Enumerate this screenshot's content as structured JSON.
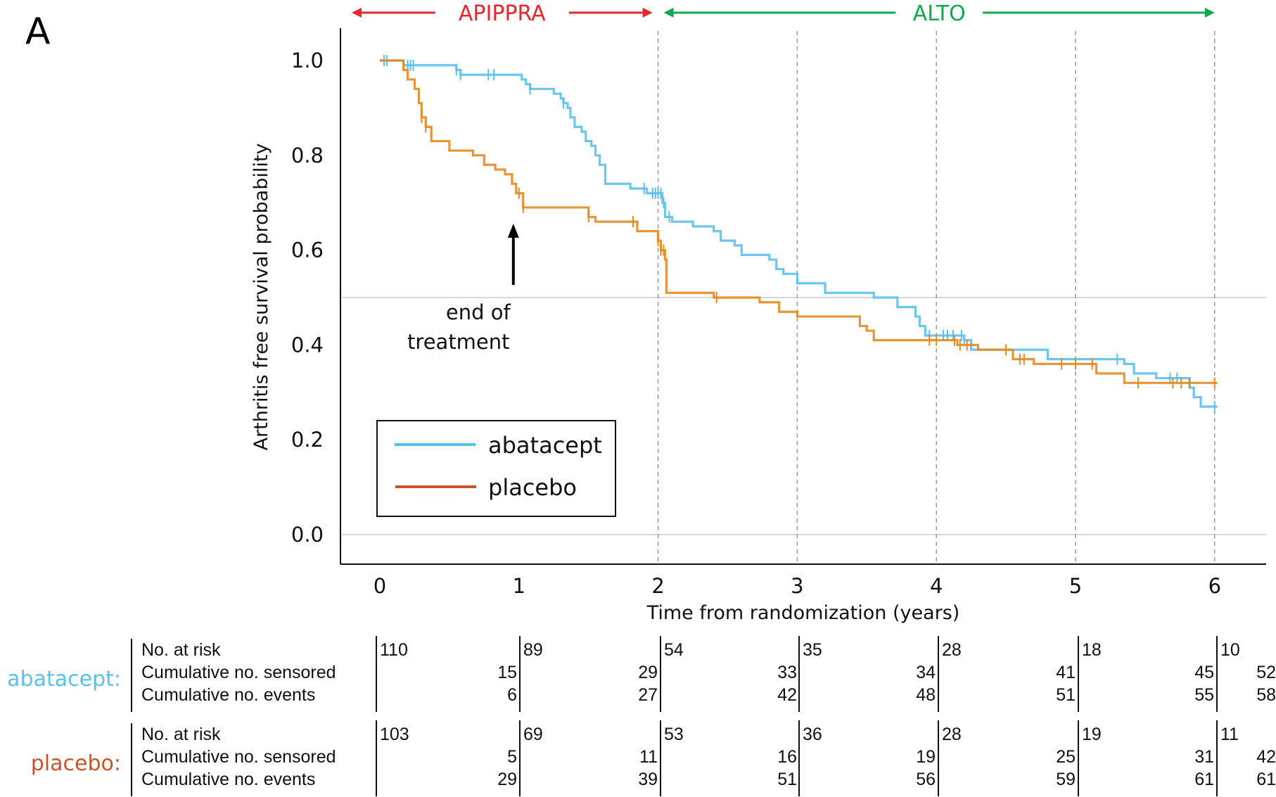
{
  "panel_label": "A",
  "colors": {
    "abatacept": "#5BC0EE",
    "placebo": "#E48A1F",
    "placebo_legend": "#C9542A",
    "apippra": "#E8262D",
    "alto": "#10A84A",
    "grid": "#cccccc",
    "vline": "#999999"
  },
  "phases": [
    {
      "label": "APIPPRA",
      "from": 0,
      "to": 2,
      "color_key": "apippra"
    },
    {
      "label": "ALTO",
      "from": 2,
      "to": 6,
      "color_key": "alto"
    }
  ],
  "annotation": {
    "line1": "end of",
    "line2": "treatment",
    "x": 1
  },
  "chart_data": {
    "type": "line",
    "subtype": "kaplan-meier step",
    "title": "",
    "xlabel": "Time from randomization (years)",
    "ylabel": "Arthritis free survival probability",
    "xlim": [
      -0.3,
      6.3
    ],
    "ylim": [
      -0.06,
      1.06
    ],
    "xticks": [
      0,
      1,
      2,
      3,
      4,
      5,
      6
    ],
    "xtick_labels": [
      "0",
      "1",
      "2",
      "3",
      "4",
      "5",
      "6"
    ],
    "yticks": [
      0.0,
      0.2,
      0.4,
      0.6,
      0.8,
      1.0
    ],
    "ytick_labels": [
      "0.0",
      "0.2",
      "0.4",
      "0.6",
      "0.8",
      "1.0"
    ],
    "hlines": [
      0.0,
      0.5
    ],
    "vlines_dashed": [
      2,
      3,
      4,
      5,
      6
    ],
    "legend": {
      "position": "bottom-left",
      "entries": [
        "abatacept",
        "placebo"
      ]
    },
    "series": [
      {
        "name": "abatacept",
        "steps": [
          [
            0.0,
            1.0
          ],
          [
            0.17,
            0.99
          ],
          [
            0.55,
            0.98
          ],
          [
            0.58,
            0.97
          ],
          [
            1.0,
            0.97
          ],
          [
            1.02,
            0.96
          ],
          [
            1.05,
            0.95
          ],
          [
            1.08,
            0.94
          ],
          [
            1.2,
            0.94
          ],
          [
            1.25,
            0.93
          ],
          [
            1.3,
            0.92
          ],
          [
            1.32,
            0.91
          ],
          [
            1.35,
            0.9
          ],
          [
            1.37,
            0.88
          ],
          [
            1.4,
            0.86
          ],
          [
            1.45,
            0.85
          ],
          [
            1.48,
            0.83
          ],
          [
            1.52,
            0.82
          ],
          [
            1.55,
            0.8
          ],
          [
            1.58,
            0.78
          ],
          [
            1.62,
            0.74
          ],
          [
            1.8,
            0.73
          ],
          [
            1.92,
            0.72
          ],
          [
            2.0,
            0.72
          ],
          [
            2.03,
            0.7
          ],
          [
            2.05,
            0.67
          ],
          [
            2.1,
            0.66
          ],
          [
            2.25,
            0.65
          ],
          [
            2.4,
            0.64
          ],
          [
            2.45,
            0.62
          ],
          [
            2.55,
            0.61
          ],
          [
            2.6,
            0.59
          ],
          [
            2.8,
            0.58
          ],
          [
            2.85,
            0.56
          ],
          [
            2.9,
            0.55
          ],
          [
            3.0,
            0.53
          ],
          [
            3.2,
            0.51
          ],
          [
            3.55,
            0.5
          ],
          [
            3.72,
            0.48
          ],
          [
            3.85,
            0.46
          ],
          [
            3.88,
            0.44
          ],
          [
            3.92,
            0.42
          ],
          [
            4.2,
            0.41
          ],
          [
            4.25,
            0.39
          ],
          [
            4.8,
            0.37
          ],
          [
            5.35,
            0.36
          ],
          [
            5.42,
            0.34
          ],
          [
            5.58,
            0.33
          ],
          [
            5.82,
            0.31
          ],
          [
            5.85,
            0.29
          ],
          [
            5.9,
            0.27
          ],
          [
            6.02,
            0.27
          ]
        ],
        "censor_times": [
          0.03,
          0.05,
          0.2,
          0.22,
          0.24,
          0.55,
          0.58,
          0.78,
          0.82,
          1.08,
          1.32,
          1.9,
          1.96,
          1.98,
          2.0,
          2.02,
          2.04,
          2.08,
          3.95,
          4.05,
          4.08,
          4.12,
          4.18,
          4.2,
          5.3,
          5.68,
          5.73,
          6.0
        ]
      },
      {
        "name": "placebo",
        "steps": [
          [
            0.0,
            1.0
          ],
          [
            0.17,
            0.98
          ],
          [
            0.2,
            0.96
          ],
          [
            0.25,
            0.94
          ],
          [
            0.28,
            0.91
          ],
          [
            0.3,
            0.88
          ],
          [
            0.33,
            0.86
          ],
          [
            0.37,
            0.83
          ],
          [
            0.5,
            0.81
          ],
          [
            0.67,
            0.8
          ],
          [
            0.75,
            0.78
          ],
          [
            0.83,
            0.77
          ],
          [
            0.9,
            0.76
          ],
          [
            0.95,
            0.74
          ],
          [
            0.98,
            0.72
          ],
          [
            1.03,
            0.69
          ],
          [
            1.5,
            0.67
          ],
          [
            1.55,
            0.66
          ],
          [
            1.85,
            0.64
          ],
          [
            2.0,
            0.62
          ],
          [
            2.02,
            0.6
          ],
          [
            2.05,
            0.58
          ],
          [
            2.06,
            0.51
          ],
          [
            2.4,
            0.5
          ],
          [
            2.73,
            0.49
          ],
          [
            2.87,
            0.47
          ],
          [
            3.0,
            0.46
          ],
          [
            3.45,
            0.44
          ],
          [
            3.5,
            0.43
          ],
          [
            3.55,
            0.41
          ],
          [
            4.15,
            0.4
          ],
          [
            4.3,
            0.39
          ],
          [
            4.55,
            0.37
          ],
          [
            4.7,
            0.36
          ],
          [
            5.15,
            0.34
          ],
          [
            5.35,
            0.32
          ],
          [
            5.6,
            0.32
          ],
          [
            6.02,
            0.32
          ]
        ],
        "censor_times": [
          0.3,
          0.33,
          1.0,
          1.03,
          1.5,
          1.82,
          2.0,
          2.02,
          2.04,
          2.42,
          3.95,
          4.0,
          4.13,
          4.17,
          4.22,
          4.5,
          4.6,
          4.63,
          4.9,
          5.0,
          5.12,
          5.45,
          5.7,
          5.76,
          5.82,
          6.0
        ]
      }
    ]
  },
  "risk_table": {
    "row_labels": [
      "No. at risk",
      "Cumulative no. sensored",
      "Cumulative no. events"
    ],
    "times": [
      0,
      1,
      2,
      3,
      4,
      5,
      6
    ],
    "groups": [
      {
        "name": "abatacept:",
        "color_key": "abatacept",
        "at_risk": [
          "110",
          "89",
          "54",
          "35",
          "28",
          "18",
          "10"
        ],
        "censored": [
          "15",
          "29",
          "33",
          "34",
          "41",
          "45",
          "52"
        ],
        "events": [
          "6",
          "27",
          "42",
          "48",
          "51",
          "55",
          "58"
        ]
      },
      {
        "name": "placebo:",
        "color_key": "placebo_legend",
        "at_risk": [
          "103",
          "69",
          "53",
          "36",
          "28",
          "19",
          "11"
        ],
        "censored": [
          "5",
          "11",
          "16",
          "19",
          "25",
          "31",
          "42"
        ],
        "events": [
          "29",
          "39",
          "51",
          "56",
          "59",
          "61",
          "61"
        ]
      }
    ]
  }
}
